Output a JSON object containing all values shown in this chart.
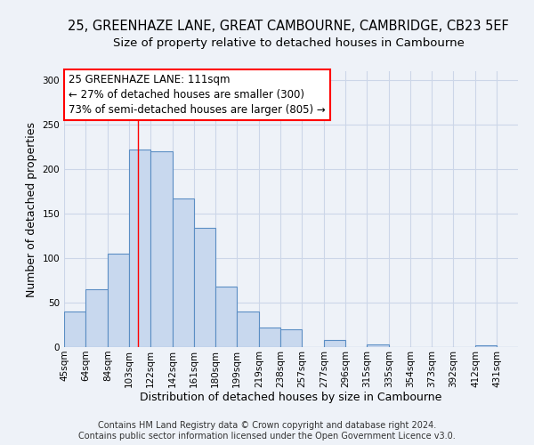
{
  "title": "25, GREENHAZE LANE, GREAT CAMBOURNE, CAMBRIDGE, CB23 5EF",
  "subtitle": "Size of property relative to detached houses in Cambourne",
  "xlabel": "Distribution of detached houses by size in Cambourne",
  "ylabel": "Number of detached properties",
  "footer_line1": "Contains HM Land Registry data © Crown copyright and database right 2024.",
  "footer_line2": "Contains public sector information licensed under the Open Government Licence v3.0.",
  "categories": [
    "45sqm",
    "64sqm",
    "84sqm",
    "103sqm",
    "122sqm",
    "142sqm",
    "161sqm",
    "180sqm",
    "199sqm",
    "219sqm",
    "238sqm",
    "257sqm",
    "277sqm",
    "296sqm",
    "315sqm",
    "335sqm",
    "354sqm",
    "373sqm",
    "392sqm",
    "412sqm",
    "431sqm"
  ],
  "values": [
    40,
    65,
    105,
    222,
    220,
    167,
    134,
    68,
    40,
    22,
    20,
    0,
    8,
    0,
    3,
    0,
    0,
    0,
    0,
    2,
    0
  ],
  "bar_color": "#c8d8ee",
  "bar_edge_color": "#5b8ec4",
  "annotation_box_text_line1": "25 GREENHAZE LANE: 111sqm",
  "annotation_box_text_line2": "← 27% of detached houses are smaller (300)",
  "annotation_box_text_line3": "73% of semi-detached houses are larger (805) →",
  "annotation_box_facecolor": "white",
  "annotation_box_edgecolor": "red",
  "red_line_x": 111,
  "bin_edges": [
    45,
    64,
    84,
    103,
    122,
    142,
    161,
    180,
    199,
    219,
    238,
    257,
    277,
    296,
    315,
    335,
    354,
    373,
    392,
    412,
    431,
    450
  ],
  "ylim": [
    0,
    310
  ],
  "xlim": [
    45,
    450
  ],
  "yticks": [
    0,
    50,
    100,
    150,
    200,
    250,
    300
  ],
  "background_color": "#eef2f8",
  "grid_color": "#ccd6e8",
  "title_fontsize": 10.5,
  "subtitle_fontsize": 9.5,
  "axis_label_fontsize": 9,
  "tick_fontsize": 7.5,
  "footer_fontsize": 7,
  "annotation_fontsize": 8.5
}
